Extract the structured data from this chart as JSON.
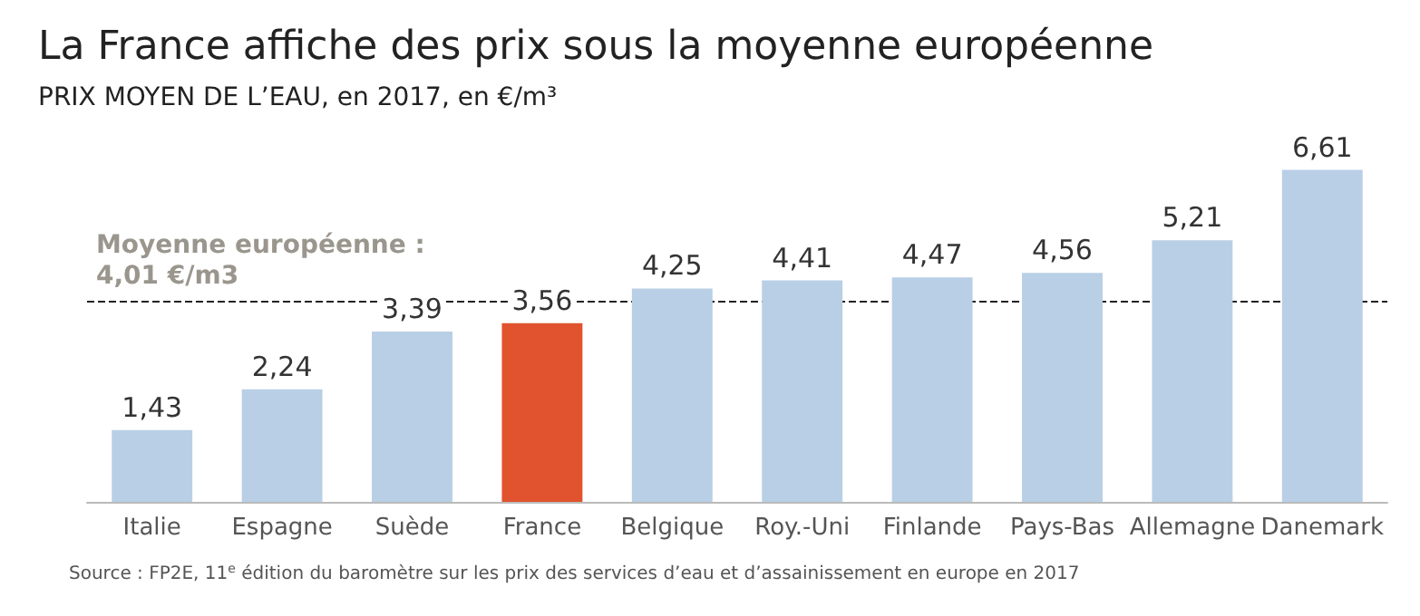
{
  "chart_data": {
    "type": "bar",
    "title": "La France affiche des prix sous la moyenne européenne",
    "subtitle": "PRIX MOYEN DE L’EAU, en 2017, en €/m³",
    "categories": [
      "Italie",
      "Espagne",
      "Suède",
      "France",
      "Belgique",
      "Roy.-Uni",
      "Finlande",
      "Pays-Bas",
      "Allemagne",
      "Danemark"
    ],
    "values": [
      1.43,
      2.24,
      3.39,
      3.56,
      4.25,
      4.41,
      4.47,
      4.56,
      5.21,
      6.61
    ],
    "colors": [
      "#b9cfe6",
      "#b9cfe6",
      "#b9cfe6",
      "#e0532e",
      "#b9cfe6",
      "#b9cfe6",
      "#b9cfe6",
      "#b9cfe6",
      "#b9cfe6",
      "#b9cfe6"
    ],
    "value_labels": [
      "1,43",
      "2,24",
      "3,39",
      "3,56",
      "4,25",
      "4,41",
      "4,47",
      "4,56",
      "5,21",
      "6,61"
    ],
    "ref_lines": [
      {
        "axis": "y",
        "value": 4.01,
        "label": "Moyenne européenne :\n4,01 €/m3",
        "color": "#222222",
        "line_style": "dashed"
      }
    ],
    "annotations": [
      "Source : FP2E, 11$^{e}$ édition du baromètre sur les prix des services d’eau et d’assainissement en europe en 2017"
    ]
  }
}
